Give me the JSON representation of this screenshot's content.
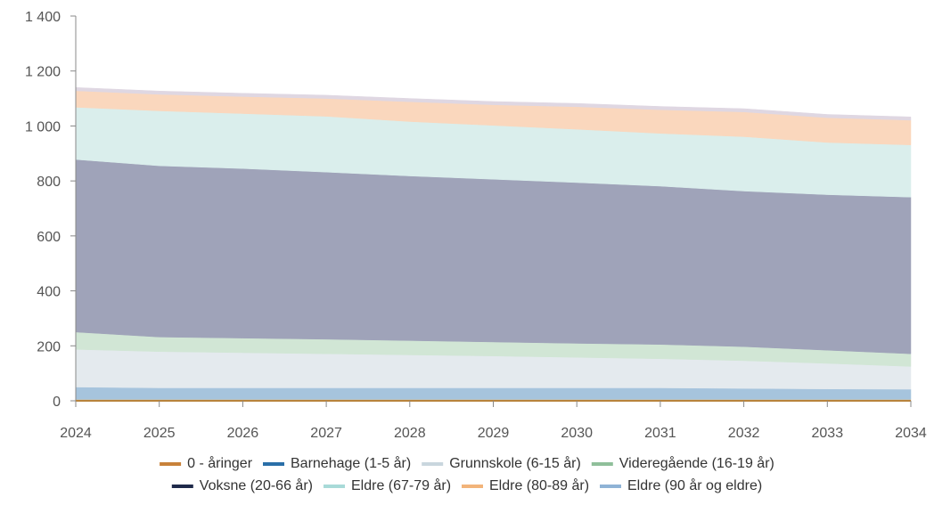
{
  "chart_data": {
    "type": "area",
    "stacked": true,
    "x": [
      2024,
      2025,
      2026,
      2027,
      2028,
      2029,
      2030,
      2031,
      2032,
      2033,
      2034
    ],
    "ylim": [
      0,
      1400
    ],
    "y_ticks": [
      "0",
      "200",
      "400",
      "600",
      "800",
      "1 000",
      "1 200",
      "1 400"
    ],
    "x_ticks": [
      "2024",
      "2025",
      "2026",
      "2027",
      "2028",
      "2029",
      "2030",
      "2031",
      "2032",
      "2033",
      "2034"
    ],
    "grid": false,
    "legend_position": "bottom",
    "series": [
      {
        "name": "0 - åringer",
        "color": "#c8823a",
        "area_color": "#e9c48e",
        "values": [
          5,
          5,
          5,
          5,
          5,
          5,
          5,
          5,
          5,
          5,
          5
        ]
      },
      {
        "name": "Barnehage (1-5 år)",
        "color": "#2a6fa8",
        "area_color": "#a6c4dd",
        "values": [
          45,
          42,
          42,
          42,
          42,
          42,
          42,
          42,
          40,
          38,
          37
        ]
      },
      {
        "name": "Grunnskole (6-15 år)",
        "color": "#c9d6de",
        "area_color": "#e4eaee",
        "values": [
          137,
          132,
          128,
          124,
          120,
          116,
          111,
          106,
          101,
          93,
          83
        ]
      },
      {
        "name": "Videregående (16-19 år)",
        "color": "#8fbf9a",
        "area_color": "#d1e6d5",
        "values": [
          63,
          53,
          53,
          53,
          52,
          51,
          51,
          52,
          51,
          48,
          46
        ]
      },
      {
        "name": "Voksne (20-66 år)",
        "color": "#1f2a4a",
        "area_color": "#9fa3b9",
        "values": [
          628,
          623,
          617,
          608,
          599,
          592,
          585,
          576,
          566,
          566,
          570
        ]
      },
      {
        "name": "Eldre (67-79 år)",
        "color": "#a8dad8",
        "area_color": "#daeeec",
        "values": [
          190,
          200,
          200,
          203,
          198,
          196,
          194,
          192,
          198,
          190,
          190
        ]
      },
      {
        "name": "Eldre (80-89 år)",
        "color": "#f2b47a",
        "area_color": "#fad7bd",
        "values": [
          60,
          60,
          62,
          65,
          72,
          75,
          82,
          86,
          90,
          90,
          90
        ]
      },
      {
        "name": "Eldre (90 år og eldre)",
        "color": "#8fb3d6",
        "area_color": "#dfd7e2",
        "values": [
          12,
          12,
          12,
          12,
          12,
          12,
          12,
          12,
          12,
          12,
          12
        ]
      }
    ]
  }
}
